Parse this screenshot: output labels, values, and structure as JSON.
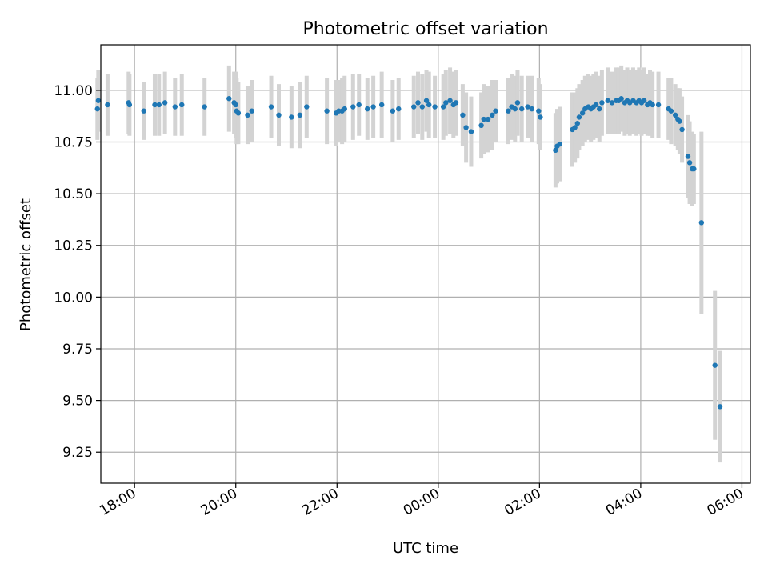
{
  "chart_data": {
    "type": "scatter",
    "title": "Photometric offset variation",
    "xlabel": "UTC time",
    "ylabel": "Photometric offset",
    "x_axis_kind": "time",
    "xlim": [
      "17:20",
      "30:10"
    ],
    "ylim": [
      9.1,
      11.22
    ],
    "xticks": [
      {
        "t": "18:00",
        "label": "18:00"
      },
      {
        "t": "20:00",
        "label": "20:00"
      },
      {
        "t": "22:00",
        "label": "22:00"
      },
      {
        "t": "24:00",
        "label": "00:00"
      },
      {
        "t": "26:00",
        "label": "02:00"
      },
      {
        "t": "28:00",
        "label": "04:00"
      },
      {
        "t": "30:00",
        "label": "06:00"
      }
    ],
    "yticks": [
      11.0,
      10.75,
      10.5,
      10.25,
      10.0,
      9.75,
      9.5,
      9.25
    ],
    "grid": true,
    "colors": {
      "point": "#1f77b4",
      "errorbar": "#d3d3d3",
      "grid": "#b0b0b0"
    },
    "series": [
      {
        "points": [
          [
            "17:16",
            10.91,
            0.15
          ],
          [
            "17:17",
            10.95,
            0.15
          ],
          [
            "17:28",
            10.93,
            0.15
          ],
          [
            "17:53",
            10.94,
            0.15
          ],
          [
            "17:54",
            10.93,
            0.15
          ],
          [
            "18:11",
            10.9,
            0.14
          ],
          [
            "18:24",
            10.93,
            0.15
          ],
          [
            "18:29",
            10.93,
            0.15
          ],
          [
            "18:36",
            10.94,
            0.15
          ],
          [
            "18:48",
            10.92,
            0.14
          ],
          [
            "18:56",
            10.93,
            0.15
          ],
          [
            "19:23",
            10.92,
            0.14
          ],
          [
            "19:52",
            10.96,
            0.16
          ],
          [
            "19:58",
            10.94,
            0.15
          ],
          [
            "20:00",
            10.93,
            0.16
          ],
          [
            "20:01",
            10.9,
            0.16
          ],
          [
            "20:03",
            10.89,
            0.15
          ],
          [
            "20:14",
            10.88,
            0.14
          ],
          [
            "20:19",
            10.9,
            0.15
          ],
          [
            "20:42",
            10.92,
            0.15
          ],
          [
            "20:51",
            10.88,
            0.15
          ],
          [
            "21:06",
            10.87,
            0.15
          ],
          [
            "21:16",
            10.88,
            0.16
          ],
          [
            "21:24",
            10.92,
            0.15
          ],
          [
            "21:48",
            10.9,
            0.16
          ],
          [
            "21:59",
            10.89,
            0.16
          ],
          [
            "22:02",
            10.9,
            0.15
          ],
          [
            "22:06",
            10.9,
            0.16
          ],
          [
            "22:09",
            10.91,
            0.16
          ],
          [
            "22:19",
            10.92,
            0.16
          ],
          [
            "22:26",
            10.93,
            0.15
          ],
          [
            "22:36",
            10.91,
            0.15
          ],
          [
            "22:43",
            10.92,
            0.15
          ],
          [
            "22:53",
            10.93,
            0.16
          ],
          [
            "23:06",
            10.9,
            0.15
          ],
          [
            "23:13",
            10.91,
            0.15
          ],
          [
            "23:31",
            10.92,
            0.15
          ],
          [
            "23:36",
            10.94,
            0.15
          ],
          [
            "23:41",
            10.92,
            0.16
          ],
          [
            "23:46",
            10.95,
            0.15
          ],
          [
            "23:49",
            10.93,
            0.16
          ],
          [
            "23:56",
            10.92,
            0.15
          ],
          [
            "24:06",
            10.92,
            0.16
          ],
          [
            "24:09",
            10.94,
            0.16
          ],
          [
            "24:14",
            10.95,
            0.16
          ],
          [
            "24:18",
            10.93,
            0.16
          ],
          [
            "24:21",
            10.94,
            0.16
          ],
          [
            "24:29",
            10.88,
            0.15
          ],
          [
            "24:33",
            10.82,
            0.17
          ],
          [
            "24:39",
            10.8,
            0.17
          ],
          [
            "24:51",
            10.83,
            0.16
          ],
          [
            "24:54",
            10.86,
            0.17
          ],
          [
            "24:59",
            10.86,
            0.16
          ],
          [
            "25:04",
            10.88,
            0.17
          ],
          [
            "25:08",
            10.9,
            0.15
          ],
          [
            "25:23",
            10.9,
            0.16
          ],
          [
            "25:27",
            10.92,
            0.16
          ],
          [
            "25:31",
            10.91,
            0.16
          ],
          [
            "25:34",
            10.94,
            0.16
          ],
          [
            "25:39",
            10.91,
            0.16
          ],
          [
            "25:46",
            10.92,
            0.15
          ],
          [
            "25:51",
            10.91,
            0.16
          ],
          [
            "25:59",
            10.9,
            0.16
          ],
          [
            "26:01",
            10.87,
            0.16
          ],
          [
            "26:19",
            10.71,
            0.18
          ],
          [
            "26:21",
            10.73,
            0.18
          ],
          [
            "26:24",
            10.74,
            0.18
          ],
          [
            "26:39",
            10.81,
            0.18
          ],
          [
            "26:42",
            10.82,
            0.17
          ],
          [
            "26:45",
            10.84,
            0.17
          ],
          [
            "26:47",
            10.87,
            0.16
          ],
          [
            "26:51",
            10.89,
            0.16
          ],
          [
            "26:54",
            10.91,
            0.16
          ],
          [
            "26:58",
            10.92,
            0.16
          ],
          [
            "27:01",
            10.91,
            0.16
          ],
          [
            "27:04",
            10.92,
            0.16
          ],
          [
            "27:07",
            10.93,
            0.16
          ],
          [
            "27:11",
            10.91,
            0.16
          ],
          [
            "27:14",
            10.94,
            0.16
          ],
          [
            "27:21",
            10.95,
            0.16
          ],
          [
            "27:26",
            10.94,
            0.15
          ],
          [
            "27:31",
            10.95,
            0.16
          ],
          [
            "27:34",
            10.95,
            0.16
          ],
          [
            "27:37",
            10.96,
            0.16
          ],
          [
            "27:41",
            10.94,
            0.16
          ],
          [
            "27:44",
            10.95,
            0.16
          ],
          [
            "27:47",
            10.94,
            0.16
          ],
          [
            "27:51",
            10.95,
            0.16
          ],
          [
            "27:55",
            10.94,
            0.16
          ],
          [
            "27:58",
            10.95,
            0.16
          ],
          [
            "28:01",
            10.94,
            0.16
          ],
          [
            "28:04",
            10.95,
            0.16
          ],
          [
            "28:08",
            10.93,
            0.15
          ],
          [
            "28:11",
            10.94,
            0.16
          ],
          [
            "28:14",
            10.93,
            0.16
          ],
          [
            "28:21",
            10.93,
            0.16
          ],
          [
            "28:33",
            10.91,
            0.15
          ],
          [
            "28:36",
            10.9,
            0.16
          ],
          [
            "28:41",
            10.88,
            0.15
          ],
          [
            "28:44",
            10.86,
            0.15
          ],
          [
            "28:46",
            10.85,
            0.16
          ],
          [
            "28:49",
            10.81,
            0.16
          ],
          [
            "28:56",
            10.68,
            0.2
          ],
          [
            "28:58",
            10.65,
            0.2
          ],
          [
            "29:01",
            10.62,
            0.18
          ],
          [
            "29:03",
            10.62,
            0.17
          ],
          [
            "29:12",
            10.36,
            0.44
          ],
          [
            "29:28",
            9.67,
            0.36
          ],
          [
            "29:34",
            9.47,
            0.27
          ]
        ]
      }
    ]
  }
}
